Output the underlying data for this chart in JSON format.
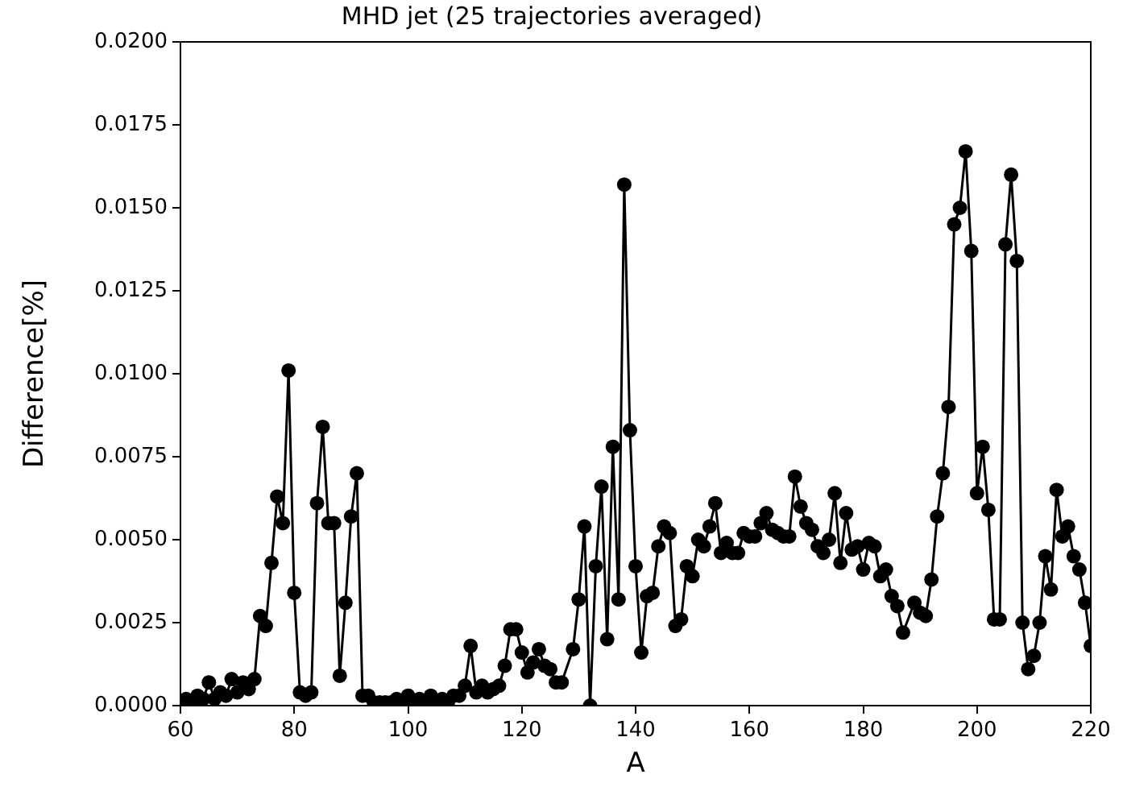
{
  "chart_data": {
    "type": "line",
    "title": "MHD jet (25 trajectories averaged)",
    "xlabel": "A",
    "ylabel": "Difference[%]",
    "xlim": [
      60,
      220
    ],
    "xticks": [
      60,
      80,
      100,
      120,
      140,
      160,
      180,
      200,
      220
    ],
    "ylim": [
      0,
      0.02
    ],
    "yticks": [
      {
        "value": 0,
        "label": "0.0000"
      },
      {
        "value": 0.0025,
        "label": "0.0025"
      },
      {
        "value": 0.005,
        "label": "0.0050"
      },
      {
        "value": 0.0075,
        "label": "0.0075"
      },
      {
        "value": 0.01,
        "label": "0.0100"
      },
      {
        "value": 0.0125,
        "label": "0.0125"
      },
      {
        "value": 0.015,
        "label": "0.0150"
      },
      {
        "value": 0.0175,
        "label": "0.0175"
      },
      {
        "value": 0.02,
        "label": "0.0200"
      }
    ],
    "grid": false,
    "legend": false,
    "marker": "circle",
    "line_style": "solid",
    "series": [
      {
        "color": "#000000",
        "x": [
          60,
          61,
          62,
          63,
          64,
          65,
          66,
          67,
          68,
          69,
          70,
          71,
          72,
          73,
          74,
          75,
          76,
          77,
          78,
          79,
          80,
          81,
          82,
          83,
          84,
          85,
          86,
          87,
          88,
          89,
          90,
          91,
          92,
          93,
          94,
          95,
          96,
          97,
          98,
          99,
          100,
          101,
          102,
          103,
          104,
          105,
          106,
          107,
          108,
          109,
          110,
          111,
          112,
          113,
          114,
          115,
          116,
          117,
          118,
          119,
          120,
          121,
          122,
          123,
          124,
          125,
          126,
          127,
          129,
          130,
          131,
          132,
          133,
          134,
          135,
          136,
          137,
          138,
          139,
          140,
          141,
          142,
          143,
          144,
          145,
          146,
          147,
          148,
          149,
          150,
          151,
          152,
          153,
          154,
          155,
          156,
          157,
          158,
          159,
          160,
          161,
          162,
          163,
          164,
          165,
          166,
          167,
          168,
          169,
          170,
          171,
          172,
          173,
          174,
          175,
          176,
          177,
          178,
          179,
          180,
          181,
          182,
          183,
          184,
          185,
          186,
          187,
          189,
          190,
          191,
          192,
          193,
          194,
          195,
          196,
          197,
          198,
          199,
          200,
          201,
          202,
          203,
          204,
          205,
          206,
          207,
          208,
          209,
          210,
          211,
          212,
          213,
          214,
          215,
          216,
          217,
          218,
          219,
          220
        ],
        "values": [
          0.0001,
          0.0002,
          0.0001,
          0.0003,
          0.0002,
          0.0007,
          0.0002,
          0.0004,
          0.0003,
          0.0008,
          0.0004,
          0.0007,
          0.0005,
          0.0008,
          0.0027,
          0.0024,
          0.0043,
          0.0063,
          0.0055,
          0.0101,
          0.0034,
          0.0004,
          0.0003,
          0.0004,
          0.0061,
          0.0084,
          0.0055,
          0.0055,
          0.0009,
          0.0031,
          0.0057,
          0.007,
          0.0003,
          0.0003,
          0.0001,
          0.0001,
          0.0001,
          0.0001,
          0.0002,
          0.0001,
          0.0003,
          0.0001,
          0.0002,
          0.0001,
          0.0003,
          0.0001,
          0.0002,
          0.0001,
          0.0003,
          0.0003,
          0.0006,
          0.0018,
          0.0004,
          0.0006,
          0.0004,
          0.0005,
          0.0006,
          0.0012,
          0.0023,
          0.0023,
          0.0016,
          0.001,
          0.0013,
          0.0017,
          0.0012,
          0.0011,
          0.0007,
          0.0007,
          0.0017,
          0.0032,
          0.0054,
          0,
          0.0042,
          0.0066,
          0.002,
          0.0078,
          0.0032,
          0.0157,
          0.0083,
          0.0042,
          0.0016,
          0.0033,
          0.0034,
          0.0048,
          0.0054,
          0.0052,
          0.0024,
          0.0026,
          0.0042,
          0.0039,
          0.005,
          0.0048,
          0.0054,
          0.0061,
          0.0046,
          0.0049,
          0.0046,
          0.0046,
          0.0052,
          0.0051,
          0.0051,
          0.0055,
          0.0058,
          0.0053,
          0.0052,
          0.0051,
          0.0051,
          0.0069,
          0.006,
          0.0055,
          0.0053,
          0.0048,
          0.0046,
          0.005,
          0.0064,
          0.0043,
          0.0058,
          0.0047,
          0.0048,
          0.0041,
          0.0049,
          0.0048,
          0.0039,
          0.0041,
          0.0033,
          0.003,
          0.0022,
          0.0031,
          0.0028,
          0.0027,
          0.0038,
          0.0057,
          0.007,
          0.009,
          0.0145,
          0.015,
          0.0167,
          0.0137,
          0.0064,
          0.0078,
          0.0059,
          0.0026,
          0.0026,
          0.0139,
          0.016,
          0.0134,
          0.0025,
          0.0011,
          0.0015,
          0.0025,
          0.0045,
          0.0035,
          0.0065,
          0.0051,
          0.0054,
          0.0045,
          0.0041,
          0.0031,
          0.0018
        ]
      }
    ]
  }
}
